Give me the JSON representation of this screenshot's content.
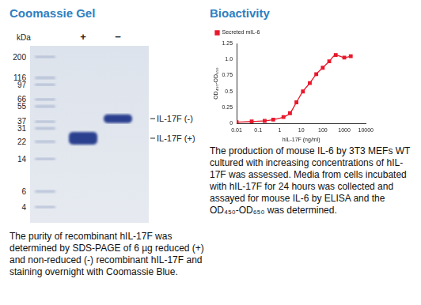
{
  "gel": {
    "title": "Coomassie Gel",
    "axis_label": "kDa",
    "markers_kda": [
      200,
      116,
      97,
      66,
      55,
      37,
      31,
      22,
      14,
      6,
      4
    ],
    "lanes": [
      "+",
      "−"
    ],
    "bands": [
      {
        "lane": "+",
        "kda": 24,
        "label": "IL-17F (+)"
      },
      {
        "lane": "−",
        "kda": 40,
        "label": "IL-17F (-)"
      }
    ],
    "caption": "The purity of recombinant hIL-17F was determined by SDS-PAGE of 6 µg reduced (+) and non-reduced (-) recombinant hIL-17F and staining overnight with Coomassie Blue."
  },
  "bioactivity": {
    "title": "Bioactivity",
    "caption": "The production of mouse IL-6 by 3T3 MEFs WT cultured with increasing concentrations of hIL-17F was assessed. Media from cells incubated with hIL-17F for 24 hours was collected and assayed for mouse IL-6 by ELISA and the OD₄₅₀-OD₆₅₀ was determined."
  },
  "chart_data": {
    "type": "line",
    "x_label": "hIL-17F (ng/ml)",
    "y_label": "OD₄₅₀-OD₆₅₀",
    "x": [
      0.01,
      0.05,
      0.2,
      0.5,
      1.5,
      3,
      6,
      12,
      25,
      50,
      100,
      200,
      400,
      1000,
      2000
    ],
    "series": [
      {
        "name": "Secreted mIL-6",
        "color": "#e8192c",
        "marker": "square",
        "values": [
          0.02,
          0.03,
          0.04,
          0.06,
          0.1,
          0.16,
          0.33,
          0.5,
          0.63,
          0.77,
          0.87,
          0.97,
          1.07,
          1.03,
          1.05
        ]
      }
    ],
    "log": "x",
    "xlim": [
      0.01,
      10000
    ],
    "xticks": [
      0.01,
      0.1,
      1,
      10,
      100,
      1000,
      10000
    ],
    "ylim": [
      0,
      1.25
    ],
    "yticks": [
      0,
      0.25,
      0.5,
      0.75,
      {
        "value": 1,
        "label": "1.0"
      },
      1.25
    ],
    "legend": "top-left",
    "grid": false
  }
}
